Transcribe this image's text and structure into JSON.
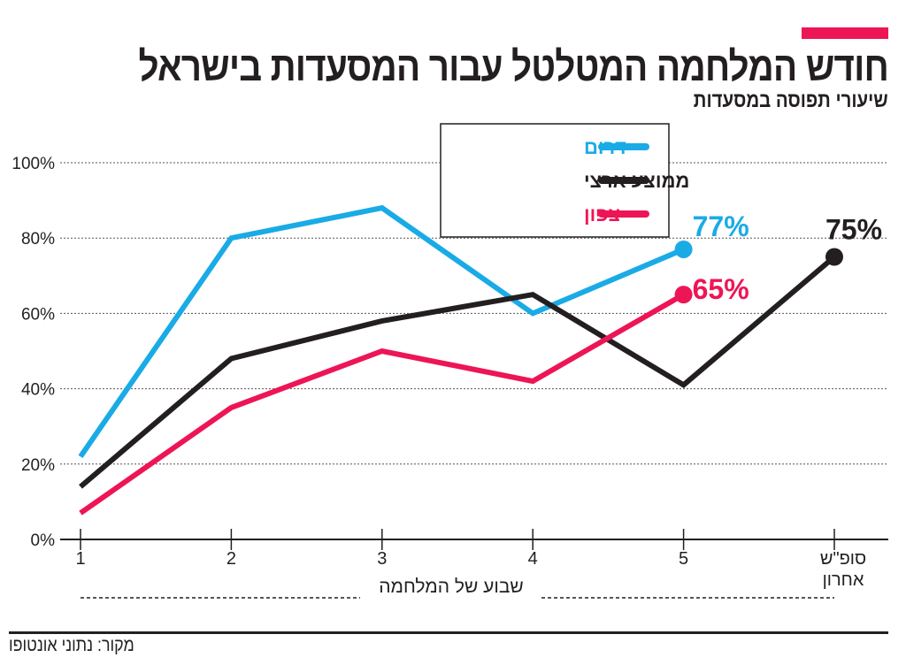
{
  "header": {
    "title": "חודש המלחמה המטלטל עבור המסעדות בישראל",
    "subtitle": "שיעורי תפוסה במסעדות",
    "accent_color": "#ed1556"
  },
  "chart_data": {
    "type": "line",
    "title": "חודש המלחמה המטלטל עבור המסעדות בישראל",
    "subtitle": "שיעורי תפוסה במסעדות",
    "xlabel": "שבוע של המלחמה",
    "ylabel": "",
    "categories": [
      "1",
      "2",
      "3",
      "4",
      "5",
      "סופ\"ש\nאחרון"
    ],
    "ylim": [
      0,
      100
    ],
    "yticks": [
      "0%",
      "20%",
      "40%",
      "60%",
      "80%",
      "100%"
    ],
    "grid": true,
    "legend_placement": "top-center",
    "series": [
      {
        "name": "דרום",
        "color": "#1aabe6",
        "values": [
          22,
          80,
          88,
          60,
          77,
          null
        ],
        "end_label": "77%"
      },
      {
        "name": "ממוצע ארצי",
        "color": "#231f20",
        "values": [
          14,
          48,
          58,
          65,
          41,
          75
        ],
        "end_label": "75%"
      },
      {
        "name": "צפון",
        "color": "#ed1556",
        "values": [
          7,
          35,
          50,
          42,
          65,
          null
        ],
        "end_label": "65%"
      }
    ]
  },
  "footer": {
    "source": "מקור: נתוני אונטופו"
  }
}
